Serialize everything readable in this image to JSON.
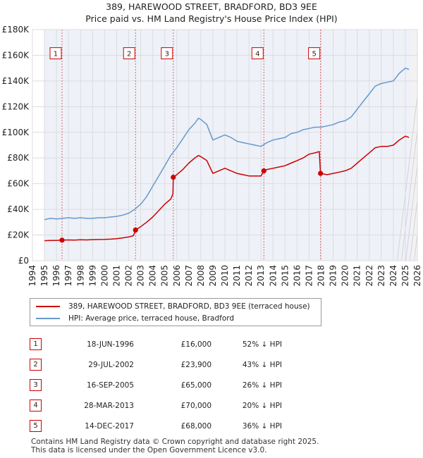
{
  "title": {
    "line1": "389, HAREWOOD STREET, BRADFORD, BD3 9EE",
    "line2": "Price paid vs. HM Land Registry's House Price Index (HPI)"
  },
  "chart_data": {
    "type": "line",
    "xlim": [
      1994,
      2026
    ],
    "ylim": [
      0,
      180000
    ],
    "x_ticks": [
      "1994",
      "1995",
      "1996",
      "1997",
      "1998",
      "1999",
      "2000",
      "2001",
      "2002",
      "2003",
      "2004",
      "2005",
      "2006",
      "2007",
      "2008",
      "2009",
      "2010",
      "2011",
      "2012",
      "2013",
      "2014",
      "2015",
      "2016",
      "2017",
      "2018",
      "2019",
      "2020",
      "2021",
      "2022",
      "2023",
      "2024",
      "2025",
      "2026"
    ],
    "y_ticks": [
      {
        "value": 0,
        "label": "£0"
      },
      {
        "value": 20000,
        "label": "£20K"
      },
      {
        "value": 40000,
        "label": "£40K"
      },
      {
        "value": 60000,
        "label": "£60K"
      },
      {
        "value": 80000,
        "label": "£80K"
      },
      {
        "value": 100000,
        "label": "£100K"
      },
      {
        "value": 120000,
        "label": "£120K"
      },
      {
        "value": 140000,
        "label": "£140K"
      },
      {
        "value": 160000,
        "label": "£160K"
      },
      {
        "value": 180000,
        "label": "£180K"
      }
    ],
    "data_range": [
      1995.0,
      2025.5
    ],
    "series": [
      {
        "name": "HPI: Average price, terraced house, Bradford",
        "color": "#6699cc",
        "points": [
          [
            1995.0,
            32000
          ],
          [
            1995.5,
            33000
          ],
          [
            1996.0,
            32500
          ],
          [
            1996.5,
            33000
          ],
          [
            1997.0,
            33500
          ],
          [
            1997.5,
            33000
          ],
          [
            1998.0,
            33500
          ],
          [
            1998.5,
            33000
          ],
          [
            1999.0,
            33000
          ],
          [
            1999.5,
            33500
          ],
          [
            2000.0,
            33500
          ],
          [
            2000.5,
            34000
          ],
          [
            2001.0,
            34500
          ],
          [
            2001.5,
            35500
          ],
          [
            2002.0,
            37000
          ],
          [
            2002.5,
            40000
          ],
          [
            2003.0,
            44000
          ],
          [
            2003.5,
            50000
          ],
          [
            2004.0,
            58000
          ],
          [
            2004.5,
            66000
          ],
          [
            2005.0,
            74000
          ],
          [
            2005.5,
            82000
          ],
          [
            2006.0,
            88000
          ],
          [
            2006.5,
            95000
          ],
          [
            2007.0,
            102000
          ],
          [
            2007.5,
            107000
          ],
          [
            2007.8,
            111000
          ],
          [
            2008.0,
            110000
          ],
          [
            2008.5,
            106000
          ],
          [
            2009.0,
            94000
          ],
          [
            2009.5,
            96000
          ],
          [
            2010.0,
            98000
          ],
          [
            2010.5,
            96000
          ],
          [
            2011.0,
            93000
          ],
          [
            2011.5,
            92000
          ],
          [
            2012.0,
            91000
          ],
          [
            2012.5,
            90000
          ],
          [
            2013.0,
            89000
          ],
          [
            2013.5,
            92000
          ],
          [
            2014.0,
            94000
          ],
          [
            2014.5,
            95000
          ],
          [
            2015.0,
            96000
          ],
          [
            2015.5,
            99000
          ],
          [
            2016.0,
            100000
          ],
          [
            2016.5,
            102000
          ],
          [
            2017.0,
            103000
          ],
          [
            2017.5,
            104000
          ],
          [
            2018.0,
            104000
          ],
          [
            2018.5,
            105000
          ],
          [
            2019.0,
            106000
          ],
          [
            2019.5,
            108000
          ],
          [
            2020.0,
            109000
          ],
          [
            2020.5,
            112000
          ],
          [
            2021.0,
            118000
          ],
          [
            2021.5,
            124000
          ],
          [
            2022.0,
            130000
          ],
          [
            2022.5,
            136000
          ],
          [
            2023.0,
            138000
          ],
          [
            2023.5,
            139000
          ],
          [
            2024.0,
            140000
          ],
          [
            2024.5,
            146000
          ],
          [
            2025.0,
            150000
          ],
          [
            2025.3,
            149000
          ]
        ]
      },
      {
        "name": "389, HAREWOOD STREET, BRADFORD, BD3 9EE (terraced house)",
        "color": "#cc0000",
        "points": [
          [
            1995.0,
            15600
          ],
          [
            1995.5,
            15800
          ],
          [
            1996.0,
            15800
          ],
          [
            1996.46,
            16000
          ],
          [
            1997.0,
            16200
          ],
          [
            1997.5,
            16100
          ],
          [
            1998.0,
            16300
          ],
          [
            1998.5,
            16200
          ],
          [
            1999.0,
            16400
          ],
          [
            1999.5,
            16500
          ],
          [
            2000.0,
            16600
          ],
          [
            2000.5,
            16800
          ],
          [
            2001.0,
            17200
          ],
          [
            2001.5,
            17800
          ],
          [
            2002.0,
            18500
          ],
          [
            2002.4,
            19500
          ],
          [
            2002.57,
            23900
          ],
          [
            2003.0,
            26500
          ],
          [
            2003.5,
            30000
          ],
          [
            2004.0,
            34000
          ],
          [
            2004.5,
            39000
          ],
          [
            2005.0,
            44000
          ],
          [
            2005.5,
            48000
          ],
          [
            2005.68,
            52000
          ],
          [
            2005.71,
            65000
          ],
          [
            2006.0,
            67000
          ],
          [
            2006.5,
            71000
          ],
          [
            2007.0,
            76000
          ],
          [
            2007.5,
            80000
          ],
          [
            2007.8,
            82000
          ],
          [
            2008.0,
            81000
          ],
          [
            2008.5,
            78000
          ],
          [
            2009.0,
            68000
          ],
          [
            2009.5,
            70000
          ],
          [
            2010.0,
            72000
          ],
          [
            2010.5,
            70000
          ],
          [
            2011.0,
            68000
          ],
          [
            2011.5,
            67000
          ],
          [
            2012.0,
            66000
          ],
          [
            2012.5,
            66000
          ],
          [
            2013.0,
            66000
          ],
          [
            2013.24,
            70000
          ],
          [
            2013.5,
            71000
          ],
          [
            2014.0,
            72000
          ],
          [
            2014.5,
            73000
          ],
          [
            2015.0,
            74000
          ],
          [
            2015.5,
            76000
          ],
          [
            2016.0,
            78000
          ],
          [
            2016.5,
            80000
          ],
          [
            2017.0,
            83000
          ],
          [
            2017.5,
            84000
          ],
          [
            2017.85,
            85000
          ],
          [
            2017.95,
            68000
          ],
          [
            2018.5,
            67000
          ],
          [
            2019.0,
            68000
          ],
          [
            2019.5,
            69000
          ],
          [
            2020.0,
            70000
          ],
          [
            2020.5,
            72000
          ],
          [
            2021.0,
            76000
          ],
          [
            2021.5,
            80000
          ],
          [
            2022.0,
            84000
          ],
          [
            2022.5,
            88000
          ],
          [
            2023.0,
            89000
          ],
          [
            2023.5,
            89000
          ],
          [
            2024.0,
            90000
          ],
          [
            2024.5,
            94000
          ],
          [
            2025.0,
            97000
          ],
          [
            2025.3,
            96000
          ]
        ]
      }
    ],
    "markers": [
      {
        "label": "1",
        "x": 1996.46,
        "y": 16000
      },
      {
        "label": "2",
        "x": 2002.57,
        "y": 23900
      },
      {
        "label": "3",
        "x": 2005.71,
        "y": 65000
      },
      {
        "label": "4",
        "x": 2013.24,
        "y": 70000
      },
      {
        "label": "5",
        "x": 2017.95,
        "y": 68000
      }
    ],
    "marker_box_value": 161000
  },
  "legend": {
    "items": [
      {
        "label": "389, HAREWOOD STREET, BRADFORD, BD3 9EE (terraced house)",
        "color": "#cc0000"
      },
      {
        "label": "HPI: Average price, terraced house, Bradford",
        "color": "#6699cc"
      }
    ]
  },
  "sales": [
    {
      "num": "1",
      "date": "18-JUN-1996",
      "price": "£16,000",
      "hpi": "52% ↓ HPI"
    },
    {
      "num": "2",
      "date": "29-JUL-2002",
      "price": "£23,900",
      "hpi": "43% ↓ HPI"
    },
    {
      "num": "3",
      "date": "16-SEP-2005",
      "price": "£65,000",
      "hpi": "26% ↓ HPI"
    },
    {
      "num": "4",
      "date": "28-MAR-2013",
      "price": "£70,000",
      "hpi": "20% ↓ HPI"
    },
    {
      "num": "5",
      "date": "14-DEC-2017",
      "price": "£68,000",
      "hpi": "36% ↓ HPI"
    }
  ],
  "footer": {
    "line1": "Contains HM Land Registry data © Crown copyright and database right 2025.",
    "line2": "This data is licensed under the Open Government Licence v3.0."
  }
}
